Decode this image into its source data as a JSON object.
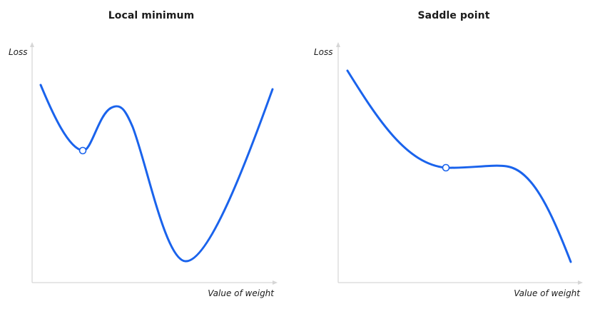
{
  "panels": {
    "local": {
      "title": "Local minimum",
      "ylabel": "Loss",
      "xlabel": "Value of weight"
    },
    "saddle": {
      "title": "Saddle point",
      "ylabel": "Loss",
      "xlabel": "Value of weight"
    }
  },
  "colors": {
    "curve": "#1a63ec",
    "axis": "#d6d6d6",
    "text": "#1b1b1b",
    "background": "#ffffff"
  }
}
